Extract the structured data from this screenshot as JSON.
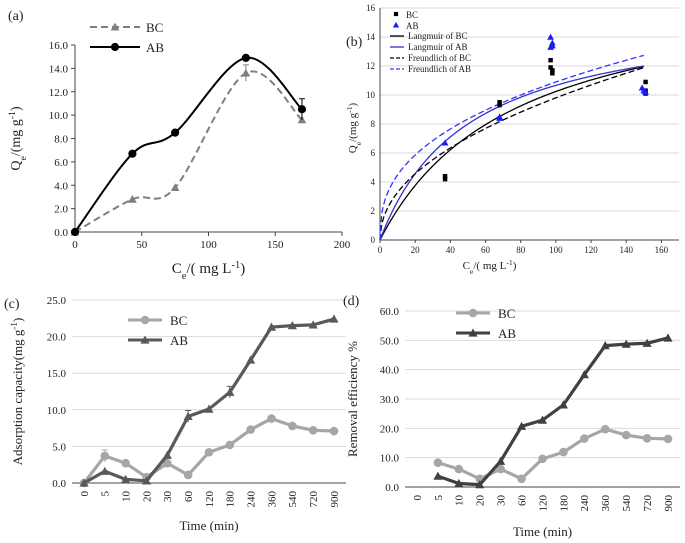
{
  "chart_data": [
    {
      "id": "a",
      "panel_label": "(a)",
      "type": "line",
      "xlabel": "C",
      "xlabel_sub": "e",
      "xlabel_tail": "/( mg L",
      "xlabel_sup": "-1",
      "xlabel_close": ")",
      "ylabel": "Q",
      "ylabel_sub": "e",
      "ylabel_tail": "/(mg g",
      "ylabel_sup": "-1",
      "ylabel_close": ")",
      "xlim": [
        0,
        200
      ],
      "ylim": [
        0,
        16
      ],
      "xticks": [
        "0",
        "50",
        "100",
        "150",
        "200"
      ],
      "yticks": [
        "0.0",
        "2.0",
        "4.0",
        "6.0",
        "8.0",
        "10.0",
        "12.0",
        "14.0",
        "16.0"
      ],
      "legend": [
        "BC",
        "AB"
      ],
      "series": [
        {
          "name": "BC",
          "color": "#7f7f7f",
          "dash": true,
          "marker": "triangle",
          "x": [
            0,
            43,
            75,
            128,
            170
          ],
          "y": [
            0.0,
            2.8,
            3.8,
            13.6,
            9.6
          ],
          "err": [
            0,
            0,
            0,
            0.7,
            0
          ]
        },
        {
          "name": "AB",
          "color": "#000000",
          "dash": false,
          "marker": "circle",
          "x": [
            0,
            43,
            75,
            128,
            170
          ],
          "y": [
            0.0,
            6.7,
            8.5,
            14.9,
            10.5
          ],
          "err": [
            0,
            0,
            0,
            0,
            0.9
          ]
        }
      ]
    },
    {
      "id": "b",
      "panel_label": "(b)",
      "type": "scatter",
      "xlabel": "C",
      "xlabel_sub": "e",
      "xlabel_tail": "/( mg L",
      "xlabel_sup": "-1",
      "xlabel_close": ")",
      "ylabel": "Q",
      "ylabel_sub": "e",
      "ylabel_tail": "/(mg g",
      "ylabel_sup": "-1",
      "ylabel_close": ")",
      "xlim": [
        0,
        170
      ],
      "ylim": [
        0,
        16
      ],
      "xticks": [
        "0",
        "20",
        "40",
        "60",
        "80",
        "100",
        "120",
        "140",
        "160"
      ],
      "yticks": [
        "0",
        "2",
        "4",
        "6",
        "8",
        "10",
        "12",
        "14",
        "16"
      ],
      "scatter": [
        {
          "name": "BC",
          "color": "#000000",
          "marker": "square",
          "x": [
            37,
            37,
            68,
            68,
            97,
            97,
            98,
            98,
            151,
            151,
            151
          ],
          "y": [
            4.4,
            4.2,
            9.5,
            9.3,
            12.4,
            11.9,
            11.5,
            11.7,
            10.9,
            10.3,
            10.1
          ]
        },
        {
          "name": "AB",
          "color": "#1a1aff",
          "marker": "triangle",
          "x": [
            37,
            68,
            68,
            97,
            97,
            98,
            98,
            149,
            150,
            151
          ],
          "y": [
            6.7,
            8.5,
            8.4,
            14.0,
            13.3,
            13.6,
            13.4,
            10.5,
            10.3,
            10.2
          ]
        }
      ],
      "fits": [
        {
          "name": "Langmuir of BC",
          "color": "#000000",
          "dash": false,
          "model": "langmuir",
          "qmax": 18,
          "k": 0.0132
        },
        {
          "name": "Langmuir of AB",
          "color": "#3333cc",
          "dash": false,
          "model": "langmuir",
          "qmax": 16,
          "k": 0.02
        },
        {
          "name": "Freundlich of BC",
          "color": "#000000",
          "dash": true,
          "model": "freundlich",
          "kf": 1.1,
          "n": 0.475
        },
        {
          "name": "Freundlich of AB",
          "color": "#3333ff",
          "dash": true,
          "model": "freundlich",
          "kf": 1.85,
          "n": 0.385
        }
      ]
    },
    {
      "id": "c",
      "panel_label": "(c)",
      "type": "line",
      "xlabel": "Time (min)",
      "ylabel": "Adsorption capacity(mg g",
      "ylabel_sup": "-1",
      "ylabel_close": ")",
      "categories": [
        "0",
        "5",
        "10",
        "20",
        "30",
        "60",
        "120",
        "180",
        "240",
        "360",
        "540",
        "720",
        "900"
      ],
      "ylim": [
        0,
        25
      ],
      "yticks": [
        "0.0",
        "5.0",
        "10.0",
        "15.0",
        "20.0",
        "25.0"
      ],
      "legend": [
        "BC",
        "AB"
      ],
      "series": [
        {
          "name": "BC",
          "color": "#a6a6a6",
          "marker": "circle",
          "values": [
            0,
            3.7,
            2.7,
            0.8,
            2.7,
            1.1,
            4.2,
            5.2,
            7.3,
            8.8,
            7.8,
            7.2,
            7.1
          ],
          "err": [
            0,
            0.8,
            0,
            0,
            0,
            0,
            0,
            0.4,
            0,
            0,
            0,
            0,
            0
          ]
        },
        {
          "name": "AB",
          "color": "#595959",
          "marker": "triangle",
          "values": [
            0,
            1.6,
            0.5,
            0.3,
            3.8,
            9.1,
            10.1,
            12.4,
            16.8,
            21.3,
            21.5,
            21.6,
            22.4
          ],
          "err": [
            0,
            0,
            0,
            0,
            0,
            0.8,
            0,
            0.8,
            0,
            0,
            0,
            0,
            0
          ]
        }
      ]
    },
    {
      "id": "d",
      "panel_label": "(d)",
      "type": "line",
      "xlabel": "Time (min)",
      "ylabel": "Removal efficiency %",
      "categories": [
        "0",
        "5",
        "10",
        "20",
        "30",
        "60",
        "120",
        "180",
        "240",
        "360",
        "540",
        "720",
        "900"
      ],
      "ylim": [
        0,
        60
      ],
      "yticks": [
        "0.0",
        "10.0",
        "20.0",
        "30.0",
        "40.0",
        "50.0",
        "60.0"
      ],
      "legend": [
        "BC",
        "AB"
      ],
      "series": [
        {
          "name": "BC",
          "color": "#a6a6a6",
          "marker": "circle",
          "values": [
            null,
            8.3,
            6.1,
            2.8,
            6.1,
            2.8,
            9.6,
            11.9,
            16.5,
            19.7,
            17.7,
            16.6,
            16.4
          ]
        },
        {
          "name": "AB",
          "color": "#404040",
          "marker": "triangle",
          "values": [
            null,
            3.7,
            1.2,
            0.8,
            8.8,
            20.7,
            22.8,
            28.0,
            38.3,
            48.2,
            48.7,
            49.0,
            50.8
          ]
        }
      ]
    }
  ]
}
